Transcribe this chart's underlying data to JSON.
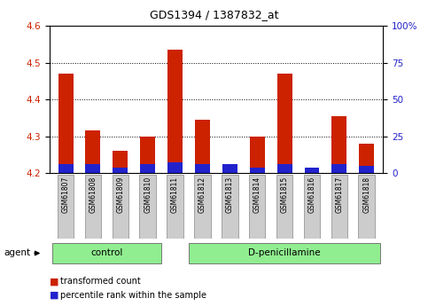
{
  "title": "GDS1394 / 1387832_at",
  "categories": [
    "GSM61807",
    "GSM61808",
    "GSM61809",
    "GSM61810",
    "GSM61811",
    "GSM61812",
    "GSM61813",
    "GSM61814",
    "GSM61815",
    "GSM61816",
    "GSM61817",
    "GSM61818"
  ],
  "red_values": [
    4.47,
    4.315,
    4.26,
    4.3,
    4.535,
    4.345,
    4.22,
    4.3,
    4.47,
    4.205,
    4.355,
    4.28
  ],
  "blue_values": [
    4.225,
    4.225,
    4.215,
    4.225,
    4.23,
    4.225,
    4.225,
    4.215,
    4.225,
    4.215,
    4.225,
    4.22
  ],
  "ymin": 4.2,
  "ymax": 4.6,
  "yticks_left": [
    4.2,
    4.3,
    4.4,
    4.5,
    4.6
  ],
  "yticks_right_pct": [
    0,
    25,
    50,
    75,
    100
  ],
  "right_tick_labels": [
    "0",
    "25",
    "50",
    "75",
    "100%"
  ],
  "bar_width": 0.55,
  "red_color": "#CC2200",
  "blue_color": "#2222CC",
  "tick_label_color_left": "#CC2200",
  "tick_label_color_right": "#2222CC",
  "group_divider": 3.5,
  "ctrl_label": "control",
  "dpen_label": "D-penicillamine",
  "group_color": "#90EE90",
  "agent_label": "agent",
  "legend_red": "transformed count",
  "legend_blue": "percentile rank within the sample",
  "title_fontsize": 9,
  "axis_fontsize": 7.5,
  "legend_fontsize": 7,
  "cat_fontsize": 5.5
}
